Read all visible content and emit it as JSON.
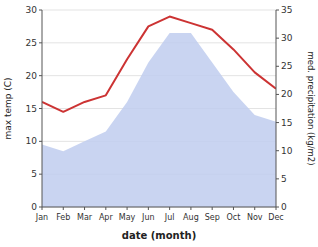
{
  "chart_data": {
    "type": "line",
    "categories": [
      "Jan",
      "Feb",
      "Mar",
      "Apr",
      "May",
      "Jun",
      "Jul",
      "Aug",
      "Sep",
      "Oct",
      "Nov",
      "Dec"
    ],
    "series": [
      {
        "type": "area",
        "color": "#c0ccee",
        "values": [
          9.5,
          8.5,
          10.0,
          11.5,
          16.0,
          22.0,
          26.5,
          26.5,
          22.0,
          17.5,
          14.0,
          13.0
        ]
      },
      {
        "type": "line",
        "color": "#cc3333",
        "values": [
          16.0,
          14.5,
          16.0,
          17.0,
          22.5,
          27.5,
          29.0,
          28.0,
          27.0,
          24.0,
          20.5,
          18.0
        ]
      }
    ],
    "x_label": "date (month)",
    "y_label": "max temp (C)",
    "y2_label": "med. precipitation (kg/m2)",
    "ylim": [
      0,
      30
    ],
    "yticks": [
      0,
      5,
      10,
      15,
      20,
      25,
      30
    ],
    "y2lim": [
      0,
      35
    ],
    "y2ticks": [
      0,
      5,
      10,
      15,
      20,
      25,
      30,
      35
    ],
    "grid": true
  }
}
